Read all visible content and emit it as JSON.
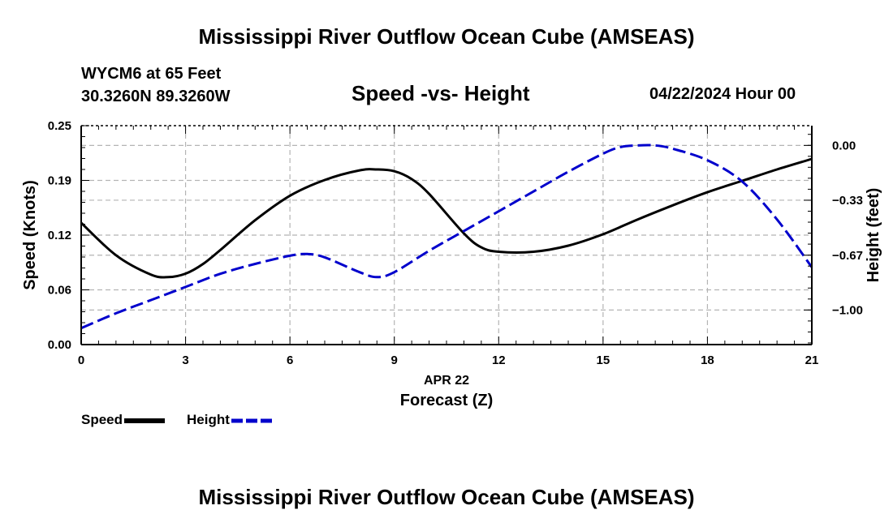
{
  "header": {
    "main_title": "Mississippi River Outflow Ocean Cube (AMSEAS)",
    "station_line": "WYCM6 at 65 Feet",
    "coords_line": "30.3260N  89.3260W",
    "subtitle": "Speed -vs- Height",
    "date_hour": "04/22/2024 Hour 00"
  },
  "footer": {
    "repeat_title": "Mississippi River Outflow Ocean Cube (AMSEAS)"
  },
  "legend": {
    "speed_label": "Speed",
    "height_label": "Height"
  },
  "colors": {
    "speed": "#000000",
    "height": "#0000cc",
    "grid": "#b4b4b4"
  },
  "chart_data": {
    "type": "line",
    "title": "Speed -vs- Height",
    "xlabel": "Forecast (Z)",
    "date_label": "APR 22",
    "ylabel_left": "Speed (Knots)",
    "ylabel_right": "Height (feet)",
    "xlim": [
      0,
      21
    ],
    "x_ticks": [
      0,
      3,
      6,
      9,
      12,
      15,
      18,
      21
    ],
    "x_tick_labels": [
      "0",
      "3",
      "6",
      "9",
      "12",
      "15",
      "18",
      "21"
    ],
    "ylim_left": [
      0,
      0.25
    ],
    "y_ticks_left": [
      0,
      0.0625,
      0.125,
      0.1875,
      0.25
    ],
    "y_tick_labels_left": [
      "0.00",
      "0.06",
      "0.12",
      "0.19",
      "0.25"
    ],
    "ylim_right": [
      -1.21,
      0.12
    ],
    "y_ticks_right": [
      -1.0,
      -0.667,
      -0.333,
      0.0
    ],
    "y_tick_labels_right": [
      "−1.00",
      "−0.67",
      "−0.33",
      "0.00"
    ],
    "grid": true,
    "series": [
      {
        "name": "Speed",
        "axis": "left",
        "style": "solid",
        "x": [
          0,
          1,
          2,
          2.5,
          3,
          3.5,
          4,
          5,
          6,
          7,
          8,
          8.5,
          9,
          9.5,
          10,
          11,
          11.5,
          12,
          13,
          14,
          15,
          16,
          17,
          18,
          19,
          20,
          21
        ],
        "y": [
          0.139,
          0.102,
          0.08,
          0.077,
          0.081,
          0.092,
          0.108,
          0.142,
          0.17,
          0.188,
          0.199,
          0.2,
          0.198,
          0.189,
          0.172,
          0.127,
          0.111,
          0.106,
          0.106,
          0.113,
          0.126,
          0.143,
          0.159,
          0.174,
          0.187,
          0.2,
          0.212
        ]
      },
      {
        "name": "Height",
        "axis": "right",
        "style": "dashed",
        "x": [
          0,
          1,
          2,
          3,
          4,
          5,
          6,
          6.5,
          7,
          8,
          8.5,
          9,
          10,
          11,
          12,
          13,
          14,
          15,
          15.5,
          16,
          16.5,
          17,
          18,
          19,
          20,
          21
        ],
        "y": [
          -1.11,
          -1.02,
          -0.94,
          -0.86,
          -0.78,
          -0.72,
          -0.67,
          -0.66,
          -0.68,
          -0.77,
          -0.8,
          -0.77,
          -0.64,
          -0.52,
          -0.4,
          -0.28,
          -0.16,
          -0.05,
          -0.01,
          0.0,
          0.0,
          -0.02,
          -0.09,
          -0.22,
          -0.45,
          -0.74
        ]
      }
    ]
  }
}
